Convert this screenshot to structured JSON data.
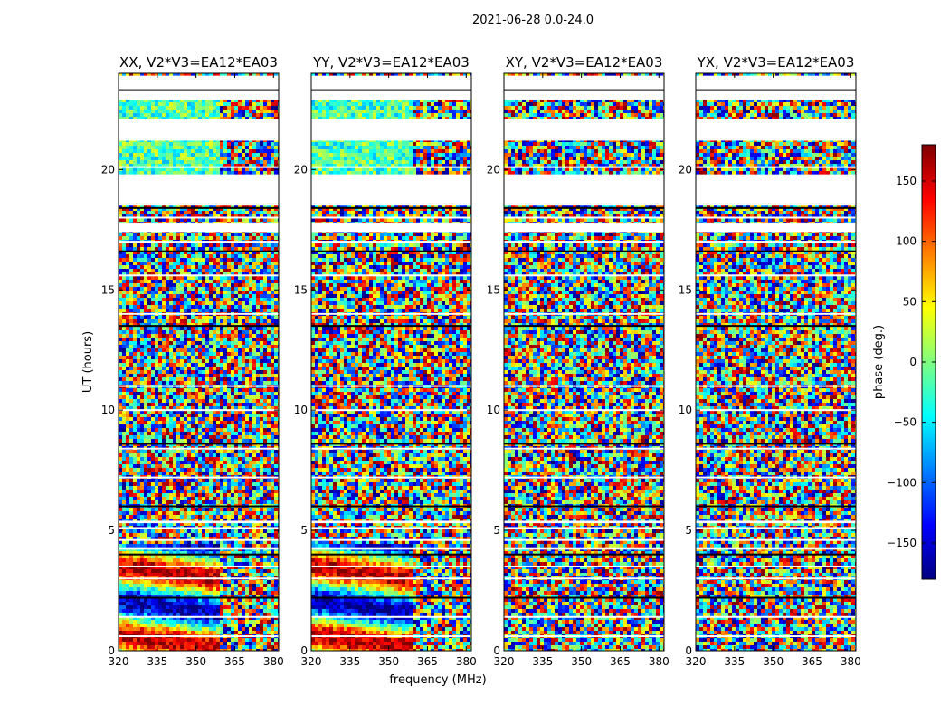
{
  "figure_title": "2021-06-28 0.0-24.0",
  "chart_data": {
    "type": "heatmap",
    "ylabel": "UT (hours)",
    "xlabel": "frequency (MHz)",
    "xlim": [
      320,
      382
    ],
    "ylim": [
      0,
      24
    ],
    "xticks": [
      320,
      335,
      350,
      365,
      380
    ],
    "yticks": [
      0,
      5,
      10,
      15,
      20
    ],
    "colorbar": {
      "label": "phase (deg.)",
      "range": [
        -180,
        180
      ],
      "ticks": [
        -150,
        -100,
        -50,
        0,
        50,
        100,
        150
      ],
      "colormap": "jet",
      "colors": [
        "#00007f",
        "#0000ff",
        "#007fff",
        "#00ffff",
        "#7fff7f",
        "#ffff00",
        "#ff7f00",
        "#ff0000",
        "#7f0000"
      ]
    },
    "panels": [
      {
        "title": "XX, V2*V3=EA12*EA03",
        "correlation": "XX"
      },
      {
        "title": "YY, V2*V3=EA12*EA03",
        "correlation": "YY"
      },
      {
        "title": "XY, V2*V3=EA12*EA03",
        "correlation": "XY"
      },
      {
        "title": "YX, V2*V3=EA12*EA03",
        "correlation": "YX"
      }
    ],
    "data_gaps_hours": [
      [
        22.9,
        23.9
      ],
      [
        21.2,
        22.1
      ],
      [
        18.5,
        19.8
      ],
      [
        17.4,
        17.8
      ],
      [
        5.3,
        5.4
      ],
      [
        4.2,
        4.3
      ]
    ],
    "flag_lines_hours": [
      23.3,
      22.0,
      20.1,
      18.4,
      18.0,
      17.0,
      16.6,
      15.6,
      14.0,
      13.5,
      11.0,
      10.0,
      8.6,
      8.4,
      7.2,
      6.0,
      5.1,
      4.6,
      4.0,
      3.5,
      3.0,
      2.2,
      1.4,
      0.6
    ]
  }
}
